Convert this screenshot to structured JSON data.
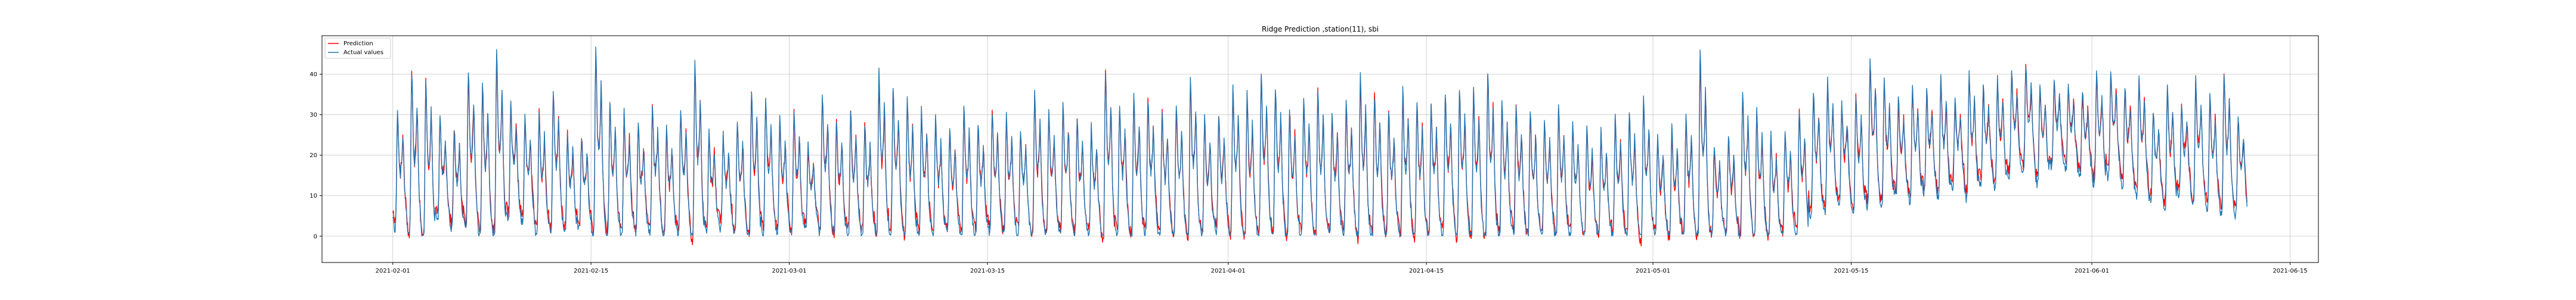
{
  "chart_data": {
    "type": "line",
    "title": "Ridge Prediction ,station(11), sbi",
    "xlabel": "",
    "ylabel": "",
    "x_range": [
      "2021-01-27",
      "2021-06-17"
    ],
    "ylim": [
      -6.5,
      49.5
    ],
    "x_ticks": [
      "2021-02-01",
      "2021-02-15",
      "2021-03-01",
      "2021-03-15",
      "2021-04-01",
      "2021-04-15",
      "2021-05-01",
      "2021-05-15",
      "2021-06-01",
      "2021-06-15"
    ],
    "y_ticks": [
      0,
      10,
      20,
      30,
      40
    ],
    "grid": true,
    "legend_position": "upper-left",
    "data_start": "2021-02-01",
    "data_end": "2021-06-11",
    "series": [
      {
        "name": "Prediction",
        "color": "#ff0000",
        "daily_mean": [
          14,
          13,
          12,
          15,
          13,
          16,
          14,
          15,
          18,
          17,
          13,
          15,
          14,
          14,
          16,
          13,
          14,
          12,
          13,
          11,
          14,
          13,
          12,
          14,
          13,
          12,
          13,
          15,
          14,
          13,
          14,
          12,
          13,
          12,
          14,
          13,
          12,
          14,
          13,
          11,
          13,
          12,
          14,
          13,
          12,
          13,
          11,
          12,
          13,
          12,
          11,
          13,
          12,
          14,
          12,
          13,
          11,
          12,
          13,
          12,
          13,
          14,
          12,
          11,
          13,
          12,
          13,
          12,
          11,
          12,
          13,
          12,
          11,
          12,
          13,
          12,
          11,
          12,
          13,
          12,
          11,
          12,
          11,
          12,
          10,
          11,
          12,
          11,
          10,
          11,
          10,
          12,
          11,
          10,
          11,
          12,
          11,
          10,
          11,
          12,
          18,
          19,
          20,
          19,
          21,
          20,
          22,
          21,
          23,
          22,
          24,
          23,
          25,
          24,
          27,
          28,
          26,
          29,
          28,
          27,
          26,
          27,
          25,
          24,
          22,
          21,
          23,
          22,
          21,
          20,
          18
        ],
        "daily_peak": [
          30,
          40,
          38,
          28,
          26,
          40,
          37,
          44,
          32,
          28,
          30,
          35,
          25,
          24,
          44,
          32,
          30,
          27,
          32,
          26,
          31,
          42,
          25,
          24,
          28,
          35,
          33,
          28,
          30,
          22,
          34,
          28,
          30,
          27,
          38,
          36,
          33,
          30,
          28,
          25,
          31,
          27,
          30,
          29,
          26,
          34,
          30,
          32,
          28,
          26,
          40,
          32,
          34,
          33,
          30,
          31,
          38,
          28,
          29,
          36,
          34,
          40,
          36,
          31,
          33,
          36,
          30,
          32,
          38,
          34,
          30,
          35,
          33,
          32,
          34,
          36,
          35,
          40,
          33,
          31,
          30,
          28,
          31,
          27,
          26,
          25,
          28,
          30,
          33,
          24,
          26,
          29,
          44,
          22,
          24,
          35,
          30,
          24,
          26,
          30,
          35,
          38,
          32,
          34,
          43,
          38,
          33,
          36,
          35,
          38,
          33,
          39,
          36,
          38,
          40,
          41,
          37,
          38,
          36,
          35,
          39,
          40,
          36,
          38,
          30,
          36,
          32,
          38,
          34,
          40,
          29
        ],
        "daily_trough": [
          5,
          3,
          2,
          6,
          4,
          5,
          3,
          4,
          6,
          5,
          3,
          4,
          2,
          3,
          4,
          3,
          2,
          3,
          4,
          2,
          3,
          2,
          3,
          4,
          2,
          3,
          4,
          3,
          2,
          3,
          4,
          2,
          3,
          2,
          3,
          4,
          2,
          3,
          2,
          3,
          2,
          3,
          4,
          2,
          3,
          2,
          3,
          4,
          2,
          3,
          2,
          3,
          2,
          4,
          3,
          2,
          3,
          2,
          4,
          3,
          2,
          3,
          4,
          2,
          3,
          2,
          3,
          4,
          2,
          3,
          2,
          3,
          2,
          3,
          4,
          2,
          3,
          2,
          3,
          4,
          2,
          3,
          2,
          3,
          1,
          2,
          3,
          2,
          1,
          2,
          1,
          2,
          3,
          1,
          2,
          3,
          2,
          1,
          2,
          3,
          8,
          9,
          10,
          8,
          11,
          10,
          12,
          11,
          13,
          12,
          14,
          12,
          15,
          14,
          17,
          18,
          15,
          19,
          18,
          16,
          15,
          17,
          14,
          12,
          10,
          9,
          12,
          10,
          9,
          8,
          7
        ]
      },
      {
        "name": "Actual values",
        "color": "#1f77b4",
        "daily_mean": [
          14,
          13,
          12,
          15,
          13,
          16,
          14,
          15,
          18,
          17,
          13,
          15,
          14,
          14,
          16,
          13,
          14,
          12,
          13,
          11,
          14,
          13,
          12,
          14,
          13,
          12,
          13,
          15,
          14,
          13,
          14,
          12,
          13,
          12,
          14,
          13,
          12,
          14,
          13,
          11,
          13,
          12,
          14,
          13,
          12,
          13,
          11,
          12,
          13,
          12,
          11,
          13,
          12,
          14,
          12,
          13,
          11,
          12,
          13,
          12,
          13,
          14,
          12,
          11,
          13,
          12,
          13,
          12,
          11,
          12,
          13,
          12,
          11,
          12,
          13,
          12,
          11,
          12,
          13,
          12,
          11,
          12,
          11,
          12,
          10,
          11,
          12,
          11,
          10,
          11,
          10,
          12,
          11,
          10,
          11,
          12,
          11,
          10,
          11,
          12,
          18,
          19,
          20,
          19,
          21,
          20,
          22,
          21,
          23,
          22,
          24,
          23,
          25,
          24,
          27,
          28,
          26,
          29,
          28,
          27,
          26,
          27,
          25,
          24,
          22,
          21,
          23,
          22,
          21,
          20,
          18
        ],
        "daily_peak": [
          31,
          41,
          39,
          29,
          27,
          41,
          38,
          46,
          33,
          29,
          31,
          36,
          26,
          25,
          47,
          33,
          31,
          28,
          33,
          27,
          32,
          43,
          26,
          25,
          29,
          36,
          34,
          29,
          31,
          23,
          35,
          29,
          31,
          28,
          41,
          37,
          34,
          31,
          29,
          26,
          32,
          28,
          31,
          30,
          27,
          35,
          31,
          33,
          29,
          27,
          41,
          33,
          35,
          34,
          31,
          32,
          39,
          29,
          30,
          37,
          35,
          41,
          37,
          32,
          34,
          37,
          31,
          33,
          40,
          35,
          31,
          36,
          34,
          33,
          35,
          37,
          36,
          41,
          34,
          32,
          31,
          29,
          32,
          28,
          27,
          26,
          29,
          31,
          34,
          25,
          27,
          30,
          46,
          23,
          25,
          36,
          31,
          25,
          27,
          31,
          36,
          39,
          33,
          35,
          44,
          39,
          34,
          37,
          36,
          39,
          34,
          40,
          37,
          39,
          41,
          42,
          38,
          39,
          37,
          36,
          40,
          41,
          37,
          39,
          31,
          37,
          33,
          39,
          35,
          41,
          30
        ],
        "daily_trough": [
          3,
          2,
          1,
          4,
          2,
          3,
          1,
          2,
          4,
          3,
          1,
          2,
          1,
          2,
          2,
          1,
          1,
          2,
          2,
          1,
          1,
          1,
          2,
          2,
          1,
          1,
          2,
          1,
          1,
          2,
          2,
          1,
          1,
          1,
          2,
          2,
          1,
          1,
          1,
          2,
          1,
          1,
          2,
          1,
          1,
          1,
          2,
          2,
          1,
          1,
          1,
          1,
          1,
          2,
          1,
          1,
          2,
          1,
          2,
          1,
          1,
          1,
          2,
          1,
          1,
          1,
          1,
          2,
          1,
          1,
          1,
          1,
          1,
          1,
          2,
          1,
          1,
          1,
          1,
          2,
          1,
          1,
          1,
          1,
          1,
          1,
          1,
          1,
          1,
          1,
          1,
          1,
          1,
          1,
          1,
          1,
          1,
          1,
          1,
          1,
          6,
          7,
          8,
          6,
          9,
          8,
          10,
          9,
          11,
          10,
          12,
          10,
          13,
          12,
          15,
          16,
          13,
          17,
          16,
          14,
          13,
          15,
          12,
          10,
          8,
          7,
          10,
          8,
          7,
          6,
          5
        ]
      }
    ]
  }
}
